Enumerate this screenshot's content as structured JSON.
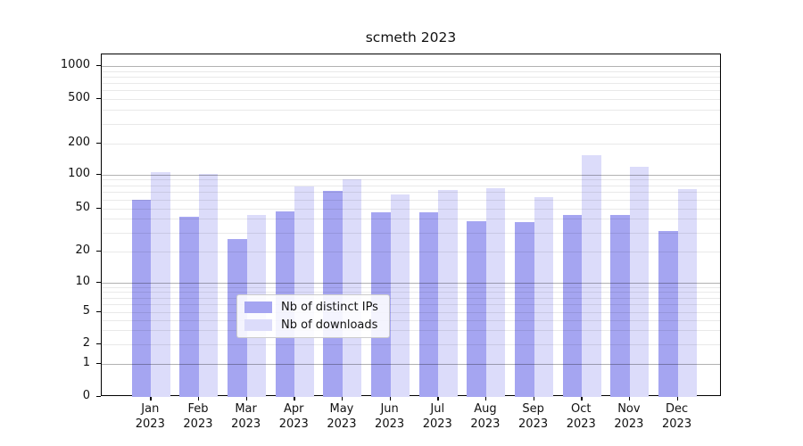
{
  "chart_data": {
    "type": "bar",
    "title": "scmeth 2023",
    "categories": [
      "Jan",
      "Feb",
      "Mar",
      "Apr",
      "May",
      "Jun",
      "Jul",
      "Aug",
      "Sep",
      "Oct",
      "Nov",
      "Dec"
    ],
    "year_label": "2023",
    "series": [
      {
        "name": "Nb of distinct IPs",
        "color": "#a5a5f1",
        "values": [
          60,
          42,
          26,
          47,
          72,
          46,
          46,
          38,
          37,
          43,
          43,
          31
        ]
      },
      {
        "name": "Nb of downloads",
        "color": "#dcdcfa",
        "values": [
          105,
          101,
          43,
          78,
          90,
          66,
          73,
          76,
          63,
          155,
          118,
          74
        ]
      }
    ],
    "yscale": "symlog",
    "ylim": [
      0,
      1400
    ],
    "y_ticks": [
      1000,
      500,
      200,
      100,
      50,
      20,
      10,
      5,
      2,
      1,
      0
    ],
    "y_major_gridlines": [
      1,
      10,
      100,
      1000
    ],
    "y_minor_gridlines": [
      2,
      3,
      4,
      5,
      6,
      7,
      8,
      9,
      20,
      30,
      40,
      50,
      60,
      70,
      80,
      90,
      200,
      300,
      400,
      500,
      600,
      700,
      800,
      900
    ],
    "grid": "horizontal",
    "legend_position": "bottom-center"
  }
}
